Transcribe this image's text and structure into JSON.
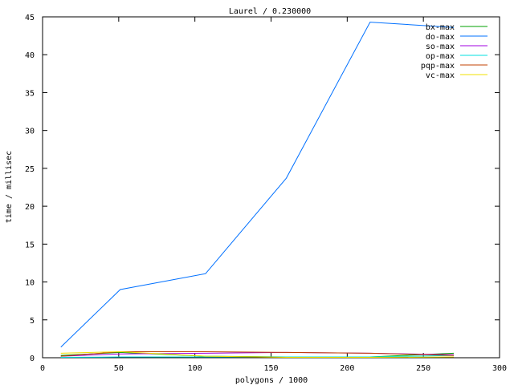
{
  "chart_data": {
    "type": "line",
    "title": "Laurel / 0.230000",
    "xlabel": "polygons / 1000",
    "ylabel": "time / millisec",
    "xlim": [
      0,
      300
    ],
    "ylim": [
      0,
      45
    ],
    "xticks": [
      0,
      50,
      100,
      150,
      200,
      250,
      300
    ],
    "yticks": [
      0,
      5,
      10,
      15,
      20,
      25,
      30,
      35,
      40,
      45
    ],
    "grid": false,
    "legend": "top-right",
    "x": [
      12,
      51,
      107,
      160,
      215,
      270
    ],
    "series": [
      {
        "name": "bx-max",
        "color": "#00a000",
        "values": [
          0.3,
          0.7,
          0.2,
          0.1,
          0.1,
          0.6
        ]
      },
      {
        "name": "do-max",
        "color": "#0070ff",
        "values": [
          1.4,
          9.0,
          11.1,
          23.7,
          44.3,
          43.6
        ]
      },
      {
        "name": "so-max",
        "color": "#a000e0",
        "values": [
          0.2,
          0.5,
          0.6,
          0.7,
          0.6,
          0.4
        ]
      },
      {
        "name": "op-max",
        "color": "#00e0e0",
        "values": [
          0.05,
          0.1,
          0.1,
          0.1,
          0.1,
          0.3
        ]
      },
      {
        "name": "pqp-max",
        "color": "#c04000",
        "values": [
          0.2,
          0.8,
          0.8,
          0.7,
          0.6,
          0.3
        ]
      },
      {
        "name": "vc-max",
        "color": "#f0e000",
        "values": [
          0.6,
          0.8,
          0.2,
          0.05,
          0.05,
          0.1
        ]
      }
    ]
  }
}
